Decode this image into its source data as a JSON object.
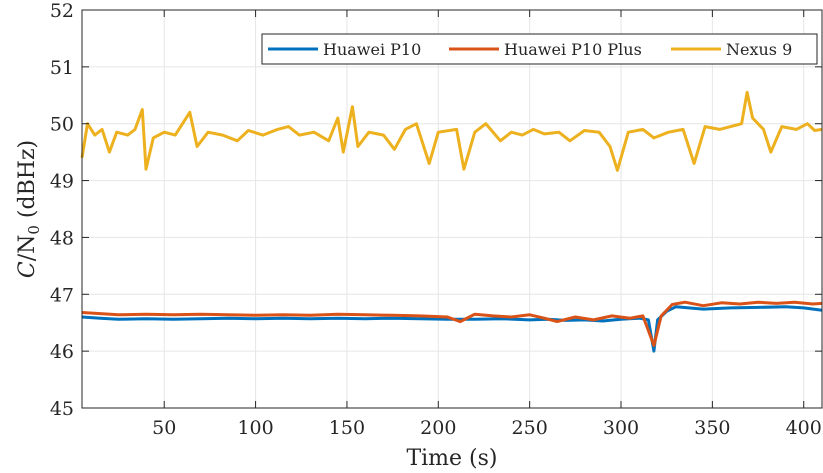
{
  "chart_data": {
    "type": "line",
    "title": "",
    "xlabel": "Time (s)",
    "ylabel_parts": {
      "c": "C",
      "slash": "/N",
      "sub": "0",
      "unit": " (dBHz)"
    },
    "xlim": [
      5,
      410
    ],
    "ylim": [
      45,
      52
    ],
    "xticks": [
      50,
      100,
      150,
      200,
      250,
      300,
      350,
      400
    ],
    "yticks": [
      45,
      46,
      47,
      48,
      49,
      50,
      51,
      52
    ],
    "grid": true,
    "legend_position": "top-right",
    "series": [
      {
        "name": "Huawei P10",
        "color": "#0072BD",
        "points": [
          [
            5,
            46.6
          ],
          [
            15,
            46.58
          ],
          [
            25,
            46.56
          ],
          [
            40,
            46.57
          ],
          [
            55,
            46.56
          ],
          [
            70,
            46.57
          ],
          [
            85,
            46.58
          ],
          [
            100,
            46.57
          ],
          [
            115,
            46.58
          ],
          [
            130,
            46.57
          ],
          [
            145,
            46.58
          ],
          [
            160,
            46.57
          ],
          [
            175,
            46.58
          ],
          [
            190,
            46.57
          ],
          [
            205,
            46.56
          ],
          [
            220,
            46.56
          ],
          [
            235,
            46.57
          ],
          [
            250,
            46.55
          ],
          [
            260,
            46.56
          ],
          [
            270,
            46.54
          ],
          [
            280,
            46.55
          ],
          [
            290,
            46.53
          ],
          [
            300,
            46.56
          ],
          [
            310,
            46.58
          ],
          [
            315,
            46.55
          ],
          [
            318,
            46.0
          ],
          [
            320,
            46.55
          ],
          [
            325,
            46.7
          ],
          [
            330,
            46.78
          ],
          [
            345,
            46.74
          ],
          [
            360,
            46.76
          ],
          [
            375,
            46.77
          ],
          [
            390,
            46.78
          ],
          [
            400,
            46.76
          ],
          [
            410,
            46.72
          ]
        ]
      },
      {
        "name": "Huawei P10 Plus",
        "color": "#D95319",
        "points": [
          [
            5,
            46.68
          ],
          [
            15,
            46.66
          ],
          [
            25,
            46.64
          ],
          [
            40,
            46.65
          ],
          [
            55,
            46.64
          ],
          [
            70,
            46.65
          ],
          [
            85,
            46.64
          ],
          [
            100,
            46.63
          ],
          [
            115,
            46.64
          ],
          [
            130,
            46.63
          ],
          [
            145,
            46.65
          ],
          [
            160,
            46.64
          ],
          [
            175,
            46.63
          ],
          [
            190,
            46.62
          ],
          [
            205,
            46.6
          ],
          [
            212,
            46.52
          ],
          [
            220,
            46.65
          ],
          [
            230,
            46.62
          ],
          [
            240,
            46.6
          ],
          [
            250,
            46.64
          ],
          [
            258,
            46.58
          ],
          [
            265,
            46.52
          ],
          [
            275,
            46.6
          ],
          [
            285,
            46.55
          ],
          [
            295,
            46.62
          ],
          [
            305,
            46.58
          ],
          [
            312,
            46.62
          ],
          [
            318,
            46.1
          ],
          [
            322,
            46.62
          ],
          [
            328,
            46.82
          ],
          [
            335,
            46.86
          ],
          [
            345,
            46.8
          ],
          [
            355,
            46.85
          ],
          [
            365,
            46.83
          ],
          [
            375,
            46.86
          ],
          [
            385,
            46.84
          ],
          [
            395,
            46.86
          ],
          [
            405,
            46.83
          ],
          [
            410,
            46.84
          ]
        ]
      },
      {
        "name": "Nexus 9",
        "color": "#EDB120",
        "points": [
          [
            5,
            49.4
          ],
          [
            8,
            50.0
          ],
          [
            12,
            49.8
          ],
          [
            16,
            49.9
          ],
          [
            20,
            49.5
          ],
          [
            24,
            49.85
          ],
          [
            30,
            49.8
          ],
          [
            34,
            49.9
          ],
          [
            38,
            50.25
          ],
          [
            40,
            49.2
          ],
          [
            44,
            49.75
          ],
          [
            50,
            49.85
          ],
          [
            56,
            49.8
          ],
          [
            64,
            50.2
          ],
          [
            68,
            49.6
          ],
          [
            74,
            49.85
          ],
          [
            82,
            49.8
          ],
          [
            90,
            49.7
          ],
          [
            96,
            49.88
          ],
          [
            104,
            49.8
          ],
          [
            112,
            49.9
          ],
          [
            118,
            49.95
          ],
          [
            124,
            49.8
          ],
          [
            132,
            49.85
          ],
          [
            140,
            49.7
          ],
          [
            145,
            50.1
          ],
          [
            148,
            49.5
          ],
          [
            153,
            50.3
          ],
          [
            156,
            49.6
          ],
          [
            162,
            49.85
          ],
          [
            170,
            49.8
          ],
          [
            176,
            49.55
          ],
          [
            182,
            49.9
          ],
          [
            188,
            50.0
          ],
          [
            195,
            49.3
          ],
          [
            200,
            49.85
          ],
          [
            210,
            49.9
          ],
          [
            214,
            49.2
          ],
          [
            220,
            49.85
          ],
          [
            226,
            50.0
          ],
          [
            234,
            49.7
          ],
          [
            240,
            49.85
          ],
          [
            246,
            49.8
          ],
          [
            252,
            49.9
          ],
          [
            258,
            49.82
          ],
          [
            266,
            49.85
          ],
          [
            272,
            49.7
          ],
          [
            280,
            49.88
          ],
          [
            288,
            49.85
          ],
          [
            294,
            49.6
          ],
          [
            298,
            49.18
          ],
          [
            304,
            49.85
          ],
          [
            312,
            49.9
          ],
          [
            318,
            49.75
          ],
          [
            326,
            49.85
          ],
          [
            334,
            49.9
          ],
          [
            340,
            49.3
          ],
          [
            346,
            49.95
          ],
          [
            354,
            49.9
          ],
          [
            360,
            49.95
          ],
          [
            366,
            50.0
          ],
          [
            369,
            50.55
          ],
          [
            372,
            50.1
          ],
          [
            378,
            49.9
          ],
          [
            382,
            49.5
          ],
          [
            388,
            49.95
          ],
          [
            396,
            49.9
          ],
          [
            402,
            50.0
          ],
          [
            406,
            49.88
          ],
          [
            410,
            49.9
          ]
        ]
      }
    ]
  }
}
